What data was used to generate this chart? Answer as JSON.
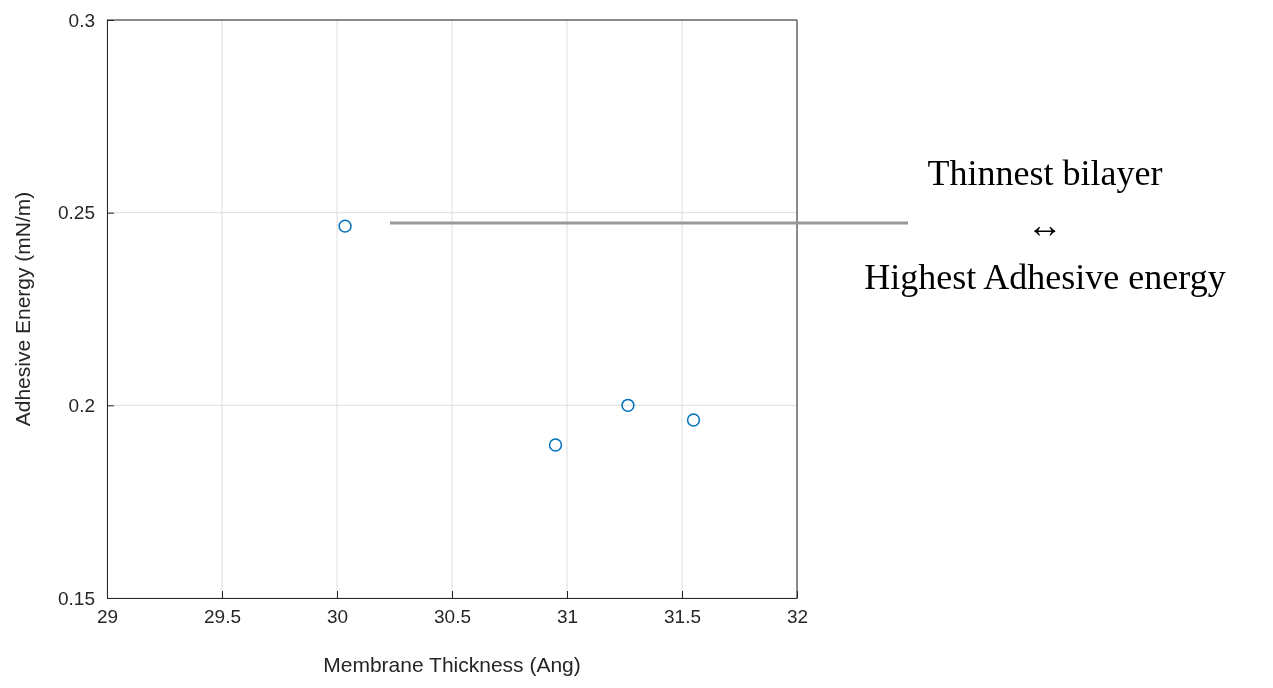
{
  "chart_data": {
    "type": "scatter",
    "xlabel": "Membrane Thickness (Ang)",
    "ylabel": "Adhesive Energy (mN/m)",
    "x": [
      30.035,
      30.95,
      31.265,
      31.55
    ],
    "series": [
      {
        "color": "#0072bd",
        "values": [
          0.2465,
          0.1897,
          0.2,
          0.1962
        ]
      }
    ],
    "xlim": [
      29,
      32
    ],
    "xticks": [
      29,
      29.5,
      30,
      30.5,
      31,
      31.5,
      32
    ],
    "ylim": [
      0.15,
      0.3
    ],
    "yticks": [
      0.15,
      0.2,
      0.25,
      0.3
    ],
    "grid": true,
    "marker": "circle",
    "annotations": [
      "Thinnest bilayer\n↔\nHighest Adhesive energy"
    ]
  }
}
